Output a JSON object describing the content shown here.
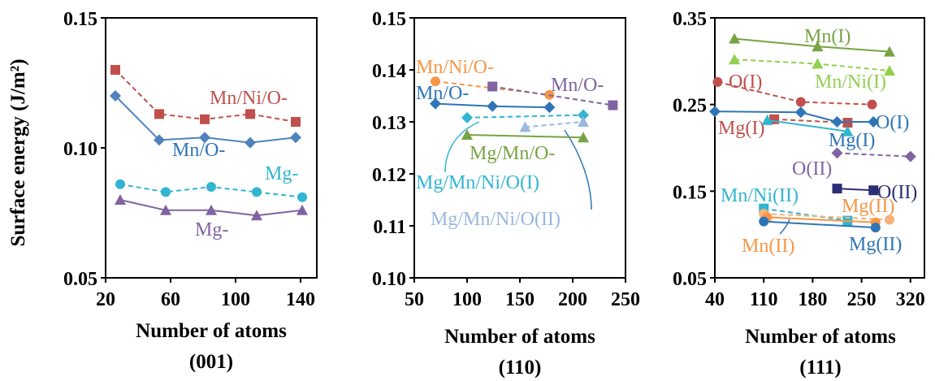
{
  "chart_data": [
    {
      "type": "line",
      "ylabel": "Surface energy (J/m²)",
      "xlabel": "Number of atoms",
      "facet_label": "(001)",
      "xlim": [
        20,
        150
      ],
      "ylim": [
        0.05,
        0.15
      ],
      "xticks": [
        "20",
        "60",
        "100",
        "140"
      ],
      "yticks": [
        "0.05",
        "0.10",
        "0.15"
      ],
      "grid": false,
      "series": [
        {
          "name": "Mn/Ni/O-",
          "color": "#c0504d",
          "marker": "square",
          "dash": true,
          "x": [
            26,
            53,
            81,
            109,
            137
          ],
          "y": [
            0.13,
            0.113,
            0.111,
            0.113,
            0.11
          ]
        },
        {
          "name": "Mn/O-",
          "color": "#4f81bd",
          "marker": "diamond",
          "dash": false,
          "x": [
            26,
            53,
            81,
            109,
            137
          ],
          "y": [
            0.12,
            0.103,
            0.104,
            0.102,
            0.104
          ]
        },
        {
          "name": "Mg-",
          "color": "#31b5d0",
          "marker": "circle",
          "dash": true,
          "x": [
            29,
            57,
            85,
            113,
            141
          ],
          "y": [
            0.086,
            0.083,
            0.085,
            0.083,
            0.081
          ]
        },
        {
          "name": "Mg-",
          "color": "#8064a2",
          "marker": "triangle",
          "dash": false,
          "x": [
            29,
            57,
            85,
            113,
            141
          ],
          "y": [
            0.08,
            0.076,
            0.076,
            0.074,
            0.076
          ]
        }
      ]
    },
    {
      "type": "line",
      "ylabel": "",
      "xlabel": "Number of atoms",
      "facet_label": "(110)",
      "xlim": [
        50,
        250
      ],
      "ylim": [
        0.1,
        0.15
      ],
      "xticks": [
        "50",
        "100",
        "150",
        "200",
        "250"
      ],
      "yticks": [
        "0.10",
        "0.11",
        "0.12",
        "0.13",
        "0.14",
        "0.15"
      ],
      "grid": false,
      "series": [
        {
          "name": "Mn/Ni/O-",
          "color": "#f79646",
          "marker": "circle",
          "dash": true,
          "x": [
            70,
            178
          ],
          "y": [
            0.1378,
            0.1352
          ]
        },
        {
          "name": "Mn/O-",
          "color": "#8064a2",
          "marker": "square",
          "dash": true,
          "x": [
            124,
            238
          ],
          "y": [
            0.1368,
            0.1332
          ]
        },
        {
          "name": "",
          "color": "#2e75b6",
          "marker": "diamond",
          "dash": false,
          "x": [
            70,
            124,
            178
          ],
          "y": [
            0.1335,
            0.133,
            0.1328
          ]
        },
        {
          "name": "Mg/Mn/Ni/O(I)",
          "color": "#31b5d0",
          "marker": "diamond",
          "dash": true,
          "x": [
            100,
            210
          ],
          "y": [
            0.1308,
            0.1313
          ]
        },
        {
          "name": "Mg/Mn/Ni/O(II)",
          "color": "#9bb7e0",
          "marker": "triangle",
          "dash": true,
          "x": [
            155,
            210
          ],
          "y": [
            0.129,
            0.13
          ]
        },
        {
          "name": "Mg/Mn/O-",
          "color": "#77a343",
          "marker": "triangle",
          "dash": false,
          "x": [
            100,
            210
          ],
          "y": [
            0.1275,
            0.127
          ]
        }
      ]
    },
    {
      "type": "line",
      "ylabel": "",
      "xlabel": "Number of atoms",
      "facet_label": "(111)",
      "xlim": [
        40,
        340
      ],
      "ylim": [
        0.05,
        0.35
      ],
      "xticks": [
        "40",
        "110",
        "180",
        "250",
        "320"
      ],
      "yticks": [
        "0.05",
        "0.15",
        "0.25",
        "0.35"
      ],
      "grid": false,
      "series": [
        {
          "name": "Mn(I)",
          "color": "#77a343",
          "marker": "triangle",
          "dash": false,
          "x": [
            68,
            187,
            290
          ],
          "y": [
            0.326,
            0.317,
            0.311
          ]
        },
        {
          "name": "Mn/Ni(I)",
          "color": "#92d050",
          "marker": "triangle",
          "dash": true,
          "x": [
            68,
            187,
            290
          ],
          "y": [
            0.302,
            0.297,
            0.289
          ]
        },
        {
          "name": "O(I)",
          "color": "#c0504d",
          "marker": "circle",
          "dash": true,
          "x": [
            44,
            163,
            265
          ],
          "y": [
            0.276,
            0.253,
            0.25
          ]
        },
        {
          "name": "Mg(I)",
          "color": "#c0504d",
          "marker": "square",
          "dash": true,
          "x": [
            125,
            230
          ],
          "y": [
            0.233,
            0.229
          ]
        },
        {
          "name": "O(I)",
          "color": "#2e75b6",
          "marker": "diamond",
          "dash": false,
          "x": [
            40,
            163,
            215,
            267
          ],
          "y": [
            0.242,
            0.241,
            0.23,
            0.23
          ]
        },
        {
          "name": "Mg(I)",
          "color": "#31b5d0",
          "marker": "triangle",
          "dash": false,
          "x": [
            115,
            230
          ],
          "y": [
            0.232,
            0.219
          ]
        },
        {
          "name": "O(II)",
          "color": "#8064a2",
          "marker": "diamond",
          "dash": true,
          "x": [
            215,
            320
          ],
          "y": [
            0.194,
            0.19
          ]
        },
        {
          "name": "O(II)",
          "color": "#2b2d75",
          "marker": "square",
          "dash": false,
          "x": [
            215,
            267
          ],
          "y": [
            0.153,
            0.151
          ]
        },
        {
          "name": "Mn/Ni(II)",
          "color": "#31b5d0",
          "marker": "square",
          "dash": true,
          "x": [
            110,
            230
          ],
          "y": [
            0.13,
            0.116
          ]
        },
        {
          "name": "Mg(II)",
          "color": "#f7b27a",
          "marker": "circle",
          "dash": true,
          "x": [
            110,
            290
          ],
          "y": [
            0.124,
            0.117
          ]
        },
        {
          "name": "Mn(II)",
          "color": "#f79646",
          "marker": "circle",
          "dash": false,
          "x": [
            115,
            270
          ],
          "y": [
            0.12,
            0.114
          ]
        },
        {
          "name": "Mg(II)",
          "color": "#2e75b6",
          "marker": "circle",
          "dash": false,
          "x": [
            110,
            270
          ],
          "y": [
            0.115,
            0.108
          ]
        }
      ]
    }
  ],
  "annotations": {
    "p1": [
      {
        "text": "Mn/Ni/O-",
        "color": "#c0504d"
      },
      {
        "text": "Mn/O-",
        "color": "#2e75b6"
      },
      {
        "text": "Mg-",
        "color": "#31b5d0"
      },
      {
        "text": "Mg-",
        "color": "#8064a2"
      }
    ],
    "p2": [
      {
        "text": "Mn/Ni/O-",
        "color": "#f79646"
      },
      {
        "text": "Mn/O-",
        "color": "#2e75b6"
      },
      {
        "text": "Mn/O-",
        "color": "#8064a2"
      },
      {
        "text": "Mg/Mn/O-",
        "color": "#77a343"
      },
      {
        "text": "Mg/Mn/Ni/O(I)",
        "color": "#31b5d0"
      },
      {
        "text": "Mg/Mn/Ni/O(II)",
        "color": "#9bb7e0"
      }
    ],
    "p3": [
      {
        "text": "Mn(I)",
        "color": "#77a343"
      },
      {
        "text": "Mn/Ni(I)",
        "color": "#92d050"
      },
      {
        "text": "O(I)",
        "color": "#c0504d"
      },
      {
        "text": "Mg(I)",
        "color": "#c0504d"
      },
      {
        "text": "O(I)",
        "color": "#2e75b6"
      },
      {
        "text": "Mg(I)",
        "color": "#2e75b6"
      },
      {
        "text": "O(II)",
        "color": "#8064a2"
      },
      {
        "text": "O(II)",
        "color": "#2b2d75"
      },
      {
        "text": "Mn/Ni(II)",
        "color": "#31b5d0"
      },
      {
        "text": "Mg(II)",
        "color": "#f79646"
      },
      {
        "text": "Mn(II)",
        "color": "#f79646"
      },
      {
        "text": "Mg(II)",
        "color": "#2e75b6"
      }
    ]
  }
}
